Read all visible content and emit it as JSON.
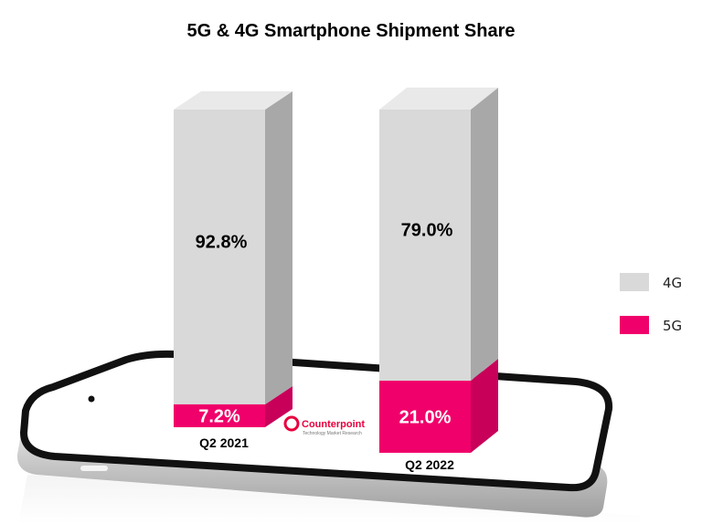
{
  "chart_data": {
    "type": "bar",
    "stacked": true,
    "title": "5G & 4G Smartphone Shipment Share",
    "categories": [
      "Q2 2021",
      "Q2 2022"
    ],
    "series": [
      {
        "name": "4G",
        "values": [
          92.8,
          79.0
        ],
        "labels": [
          "92.8%",
          "79.0%"
        ],
        "color": "#d9d9d9"
      },
      {
        "name": "5G",
        "values": [
          7.2,
          21.0
        ],
        "labels": [
          "7.2%",
          "21.0%"
        ],
        "color": "#f0006a"
      }
    ],
    "ylim": [
      0,
      100
    ],
    "legend_position": "right",
    "grid": false
  },
  "colors": {
    "four_g_front": "#d9d9d9",
    "four_g_top": "#e9e9e9",
    "four_g_side": "#a8a8a8",
    "five_g_front": "#f0006a",
    "five_g_side": "#c8005a",
    "phone_outline": "#111111",
    "phone_body": "#c9c9c9"
  },
  "watermark": {
    "name": "Counterpoint",
    "tagline": "Technology Market Research",
    "color": "#e8003d"
  }
}
